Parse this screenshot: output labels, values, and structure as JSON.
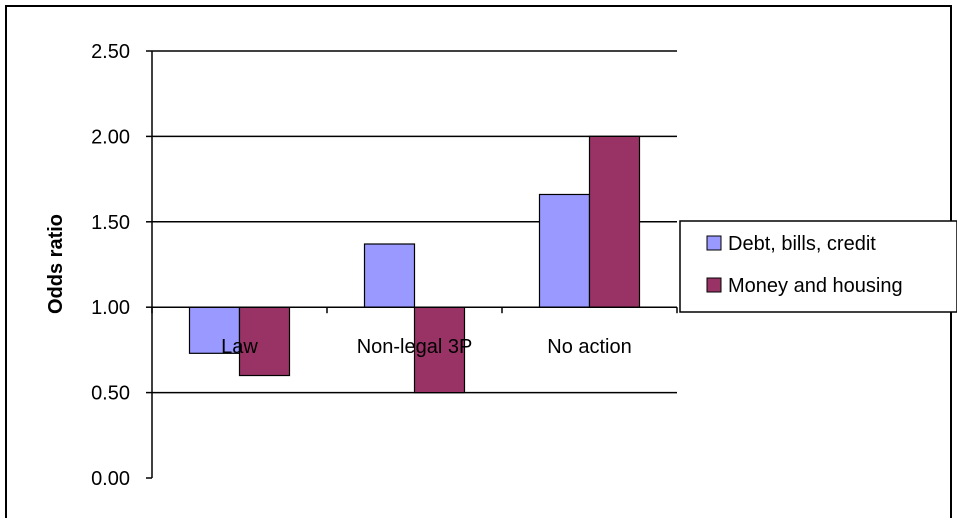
{
  "chart_data": {
    "type": "bar",
    "title": "",
    "xlabel": "",
    "ylabel": "Odds ratio",
    "categories": [
      "Law",
      "Non-legal 3P",
      "No action"
    ],
    "baseline": 1.0,
    "series": [
      {
        "name": "Debt, bills, credit",
        "color": "#9999ff",
        "values": [
          0.73,
          1.37,
          1.66
        ]
      },
      {
        "name": "Money and housing",
        "color": "#993366",
        "values": [
          0.6,
          0.5,
          2.0
        ]
      }
    ],
    "ylim": [
      0,
      2.5
    ],
    "yticks": [
      "0.00",
      "0.50",
      "1.00",
      "1.50",
      "2.00",
      "2.50"
    ],
    "grid": true,
    "legend_position": "right"
  }
}
